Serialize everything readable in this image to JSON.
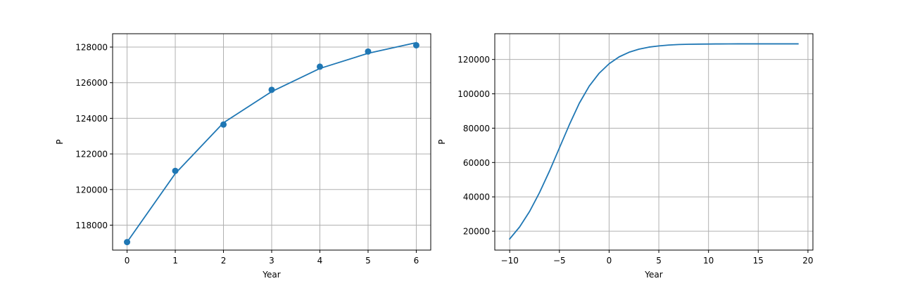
{
  "colors": {
    "series": "#1f77b4",
    "grid": "#b0b0b0",
    "axis": "#000000"
  },
  "chart_data": [
    {
      "type": "line",
      "xlabel": "Year",
      "ylabel": "P",
      "xlim": [
        -0.3,
        6.3
      ],
      "ylim": [
        116600,
        128750
      ],
      "grid": true,
      "xticks": [
        0,
        1,
        2,
        3,
        4,
        5,
        6
      ],
      "yticks": [
        118000,
        120000,
        122000,
        124000,
        126000,
        128000
      ],
      "series": [
        {
          "kind": "scatter",
          "x": [
            0,
            1,
            2,
            3,
            4,
            5,
            6
          ],
          "y": [
            117050,
            121050,
            123650,
            125600,
            126900,
            127750,
            128100
          ]
        },
        {
          "kind": "line",
          "x": [
            0,
            1,
            2,
            3,
            4,
            5,
            6
          ],
          "y": [
            117050,
            120900,
            123750,
            125500,
            126800,
            127650,
            128250
          ]
        }
      ]
    },
    {
      "type": "line",
      "xlabel": "Year",
      "ylabel": "P",
      "xlim": [
        -11.5,
        20.5
      ],
      "ylim": [
        9000,
        135000
      ],
      "grid": true,
      "xticks": [
        -10,
        -5,
        0,
        5,
        10,
        15,
        20
      ],
      "yticks": [
        20000,
        40000,
        60000,
        80000,
        100000,
        120000
      ],
      "series": [
        {
          "kind": "line",
          "x": [
            -10,
            -9,
            -8,
            -7,
            -6,
            -5,
            -4,
            -3,
            -2,
            -1,
            0,
            1,
            2,
            3,
            4,
            5,
            6,
            7,
            8,
            9,
            10,
            11,
            12,
            13,
            14,
            15,
            16,
            17,
            18,
            19
          ],
          "y": [
            15500,
            22500,
            31500,
            42500,
            55000,
            68500,
            82000,
            94500,
            104500,
            112000,
            117500,
            121500,
            124200,
            126000,
            127200,
            127900,
            128400,
            128700,
            128850,
            128950,
            129000,
            129050,
            129080,
            129100,
            129100,
            129100,
            129100,
            129100,
            129100,
            129100
          ]
        }
      ]
    }
  ]
}
